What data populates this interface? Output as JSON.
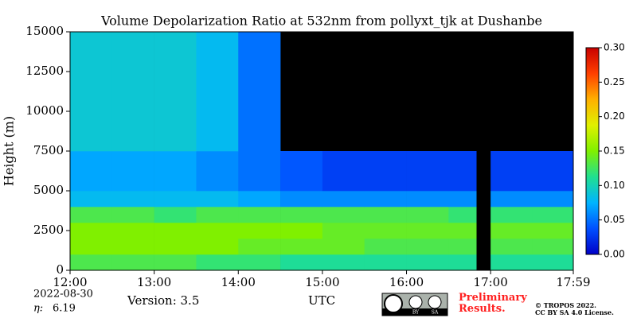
{
  "chart_data": {
    "type": "heatmap",
    "title": "Volume Depolarization Ratio at 532nm from pollyxt_tjk at Dushanbe",
    "y_label": "Height (m)",
    "x_label": "UTC",
    "date": "2022-08-30",
    "eta_label": "η:",
    "eta": "6.19",
    "version": "Version: 3.5",
    "preliminary": "Preliminary Results.",
    "copyright": "© TROPOS 2022.",
    "license": "CC BY SA 4.0 License.",
    "badge": [
      "BY",
      "SA"
    ],
    "xlim": [
      12,
      17.983
    ],
    "xticks": [
      {
        "value": 12,
        "label": "12:00"
      },
      {
        "value": 13,
        "label": "13:00"
      },
      {
        "value": 14,
        "label": "14:00"
      },
      {
        "value": 15,
        "label": "15:00"
      },
      {
        "value": 16,
        "label": "16:00"
      },
      {
        "value": 17,
        "label": "17:00"
      },
      {
        "value": 17.983,
        "label": "17:59"
      }
    ],
    "ylim": [
      0,
      15000
    ],
    "yticks": [
      0,
      2500,
      5000,
      7500,
      10000,
      12500,
      15000
    ],
    "zlim": [
      0,
      0.3
    ],
    "zticks": [
      {
        "value": 0,
        "label": "0.00"
      },
      {
        "value": 0.05,
        "label": "0.05"
      },
      {
        "value": 0.1,
        "label": "0.10"
      },
      {
        "value": 0.15,
        "label": "0.15"
      },
      {
        "value": 0.2,
        "label": "0.20"
      },
      {
        "value": 0.25,
        "label": "0.25"
      },
      {
        "value": 0.3,
        "label": "0.30"
      }
    ],
    "colormap": [
      "#0000c8",
      "#0050ff",
      "#00b4ff",
      "#20e090",
      "#80f000",
      "#e0f000",
      "#ffb000",
      "#ff4000",
      "#c80000"
    ],
    "x_edges": [
      12,
      12.5,
      13,
      13.5,
      14,
      14.5,
      15,
      15.5,
      16,
      16.5,
      16.83,
      17,
      17.5,
      17.983
    ],
    "y_edges": [
      0,
      1000,
      2000,
      3000,
      4000,
      5000,
      7500,
      15000
    ],
    "z": [
      [
        0.13,
        0.13,
        0.13,
        0.12,
        0.12,
        0.11,
        0.11,
        0.11,
        0.11,
        0.11,
        null,
        0.11,
        0.11
      ],
      [
        0.15,
        0.15,
        0.15,
        0.15,
        0.14,
        0.14,
        0.14,
        0.13,
        0.13,
        0.13,
        null,
        0.13,
        0.13
      ],
      [
        0.15,
        0.15,
        0.15,
        0.15,
        0.15,
        0.15,
        0.14,
        0.14,
        0.14,
        0.14,
        null,
        0.14,
        0.14
      ],
      [
        0.13,
        0.13,
        0.12,
        0.13,
        0.13,
        0.13,
        0.13,
        0.13,
        0.13,
        0.12,
        null,
        0.12,
        0.12
      ],
      [
        0.08,
        0.08,
        0.08,
        0.08,
        0.07,
        0.06,
        0.06,
        0.06,
        0.06,
        0.06,
        null,
        0.06,
        0.06
      ],
      [
        0.07,
        0.07,
        0.07,
        0.06,
        0.05,
        0.04,
        0.03,
        0.03,
        0.03,
        0.03,
        null,
        0.03,
        0.03
      ],
      [
        0.09,
        0.09,
        0.09,
        0.08,
        0.05,
        null,
        null,
        null,
        null,
        null,
        null,
        null,
        null
      ]
    ]
  }
}
